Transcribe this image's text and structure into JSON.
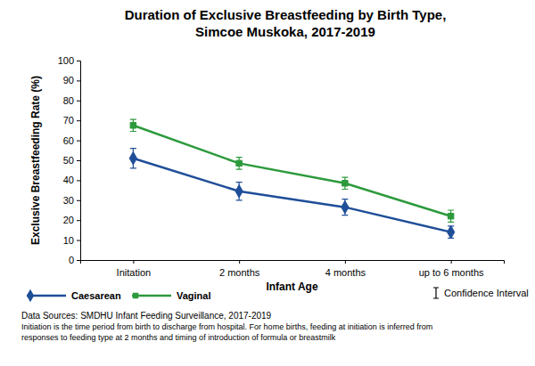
{
  "chart_data": {
    "type": "line",
    "title": [
      "Duration of Exclusive Breastfeeding by Birth Type,",
      "Simcoe Muskoka, 2017-2019"
    ],
    "x_label": "Infant Age",
    "y_label": "Exclusive Breastfeeding Rate (%)",
    "categories": [
      "Initation",
      "2 months",
      "4 months",
      "up to 6 months"
    ],
    "series": [
      {
        "name": "Caesarean",
        "color": "#1f4e99",
        "marker": "diamond",
        "values": [
          51,
          34.5,
          26.5,
          14
        ],
        "errors": [
          5,
          4.5,
          4,
          3
        ]
      },
      {
        "name": "Vaginal",
        "color": "#2c9a3c",
        "marker": "square",
        "values": [
          67.5,
          48.5,
          38.5,
          22
        ],
        "errors": [
          3,
          3,
          3,
          3
        ]
      }
    ],
    "ylim": [
      0,
      100
    ],
    "yticks": [
      0,
      10,
      20,
      30,
      40,
      50,
      60,
      70,
      80,
      90,
      100
    ],
    "grid": false,
    "legend": "bottom-left",
    "error_bar_label": "Confidence Interval",
    "notes": [
      "Data Sources: SMDHU Infant Feeding Surveillance, 2017-2019",
      "Initiation is the time period from birth to discharge from hospital.  For home births, feeding at initiation is inferred from",
      "responses to feeding type at 2 months and timing of introduction of formula or breastmilk"
    ]
  }
}
